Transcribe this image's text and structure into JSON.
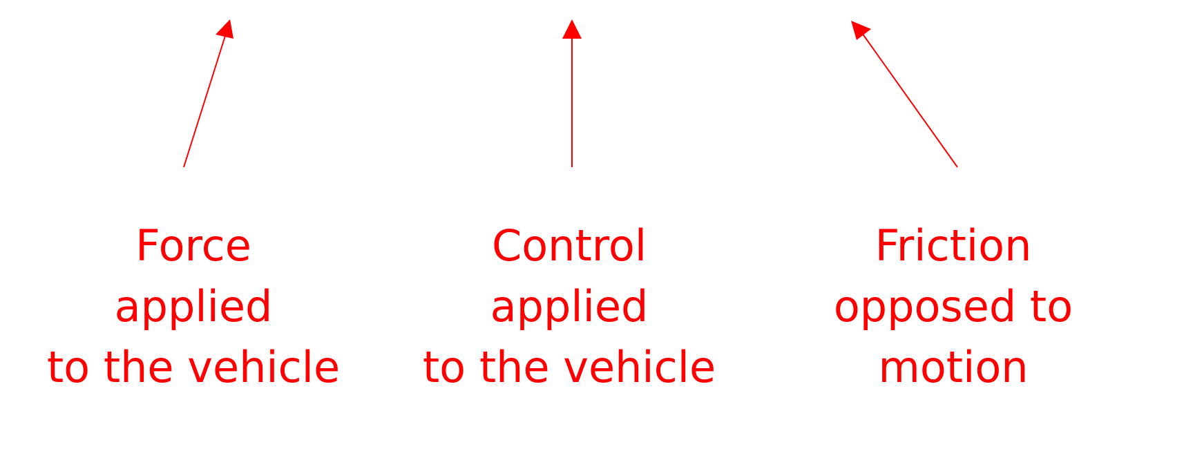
{
  "colors": {
    "annotation": "#ff0000"
  },
  "labels": {
    "force": {
      "line1": "Force",
      "line2": "applied",
      "line3": "to the vehicle"
    },
    "control": {
      "line1": "Control",
      "line2": "applied",
      "line3": "to the vehicle"
    },
    "friction": {
      "line1": "Friction",
      "line2": "opposed to",
      "line3": "motion"
    }
  }
}
